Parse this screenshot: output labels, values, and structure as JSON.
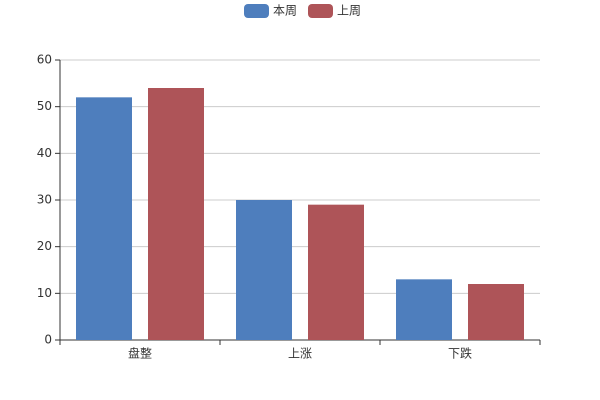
{
  "chart_data": {
    "type": "bar",
    "categories": [
      "盘整",
      "上涨",
      "下跌"
    ],
    "series": [
      {
        "name": "本周",
        "color": "#4e7ebd",
        "values": [
          52,
          30,
          13
        ]
      },
      {
        "name": "上周",
        "color": "#ae5458",
        "values": [
          54,
          29,
          12
        ]
      }
    ],
    "ylim": [
      0,
      60
    ],
    "yticks": [
      0,
      10,
      20,
      30,
      40,
      50,
      60
    ],
    "grid": true,
    "legend": "top"
  }
}
